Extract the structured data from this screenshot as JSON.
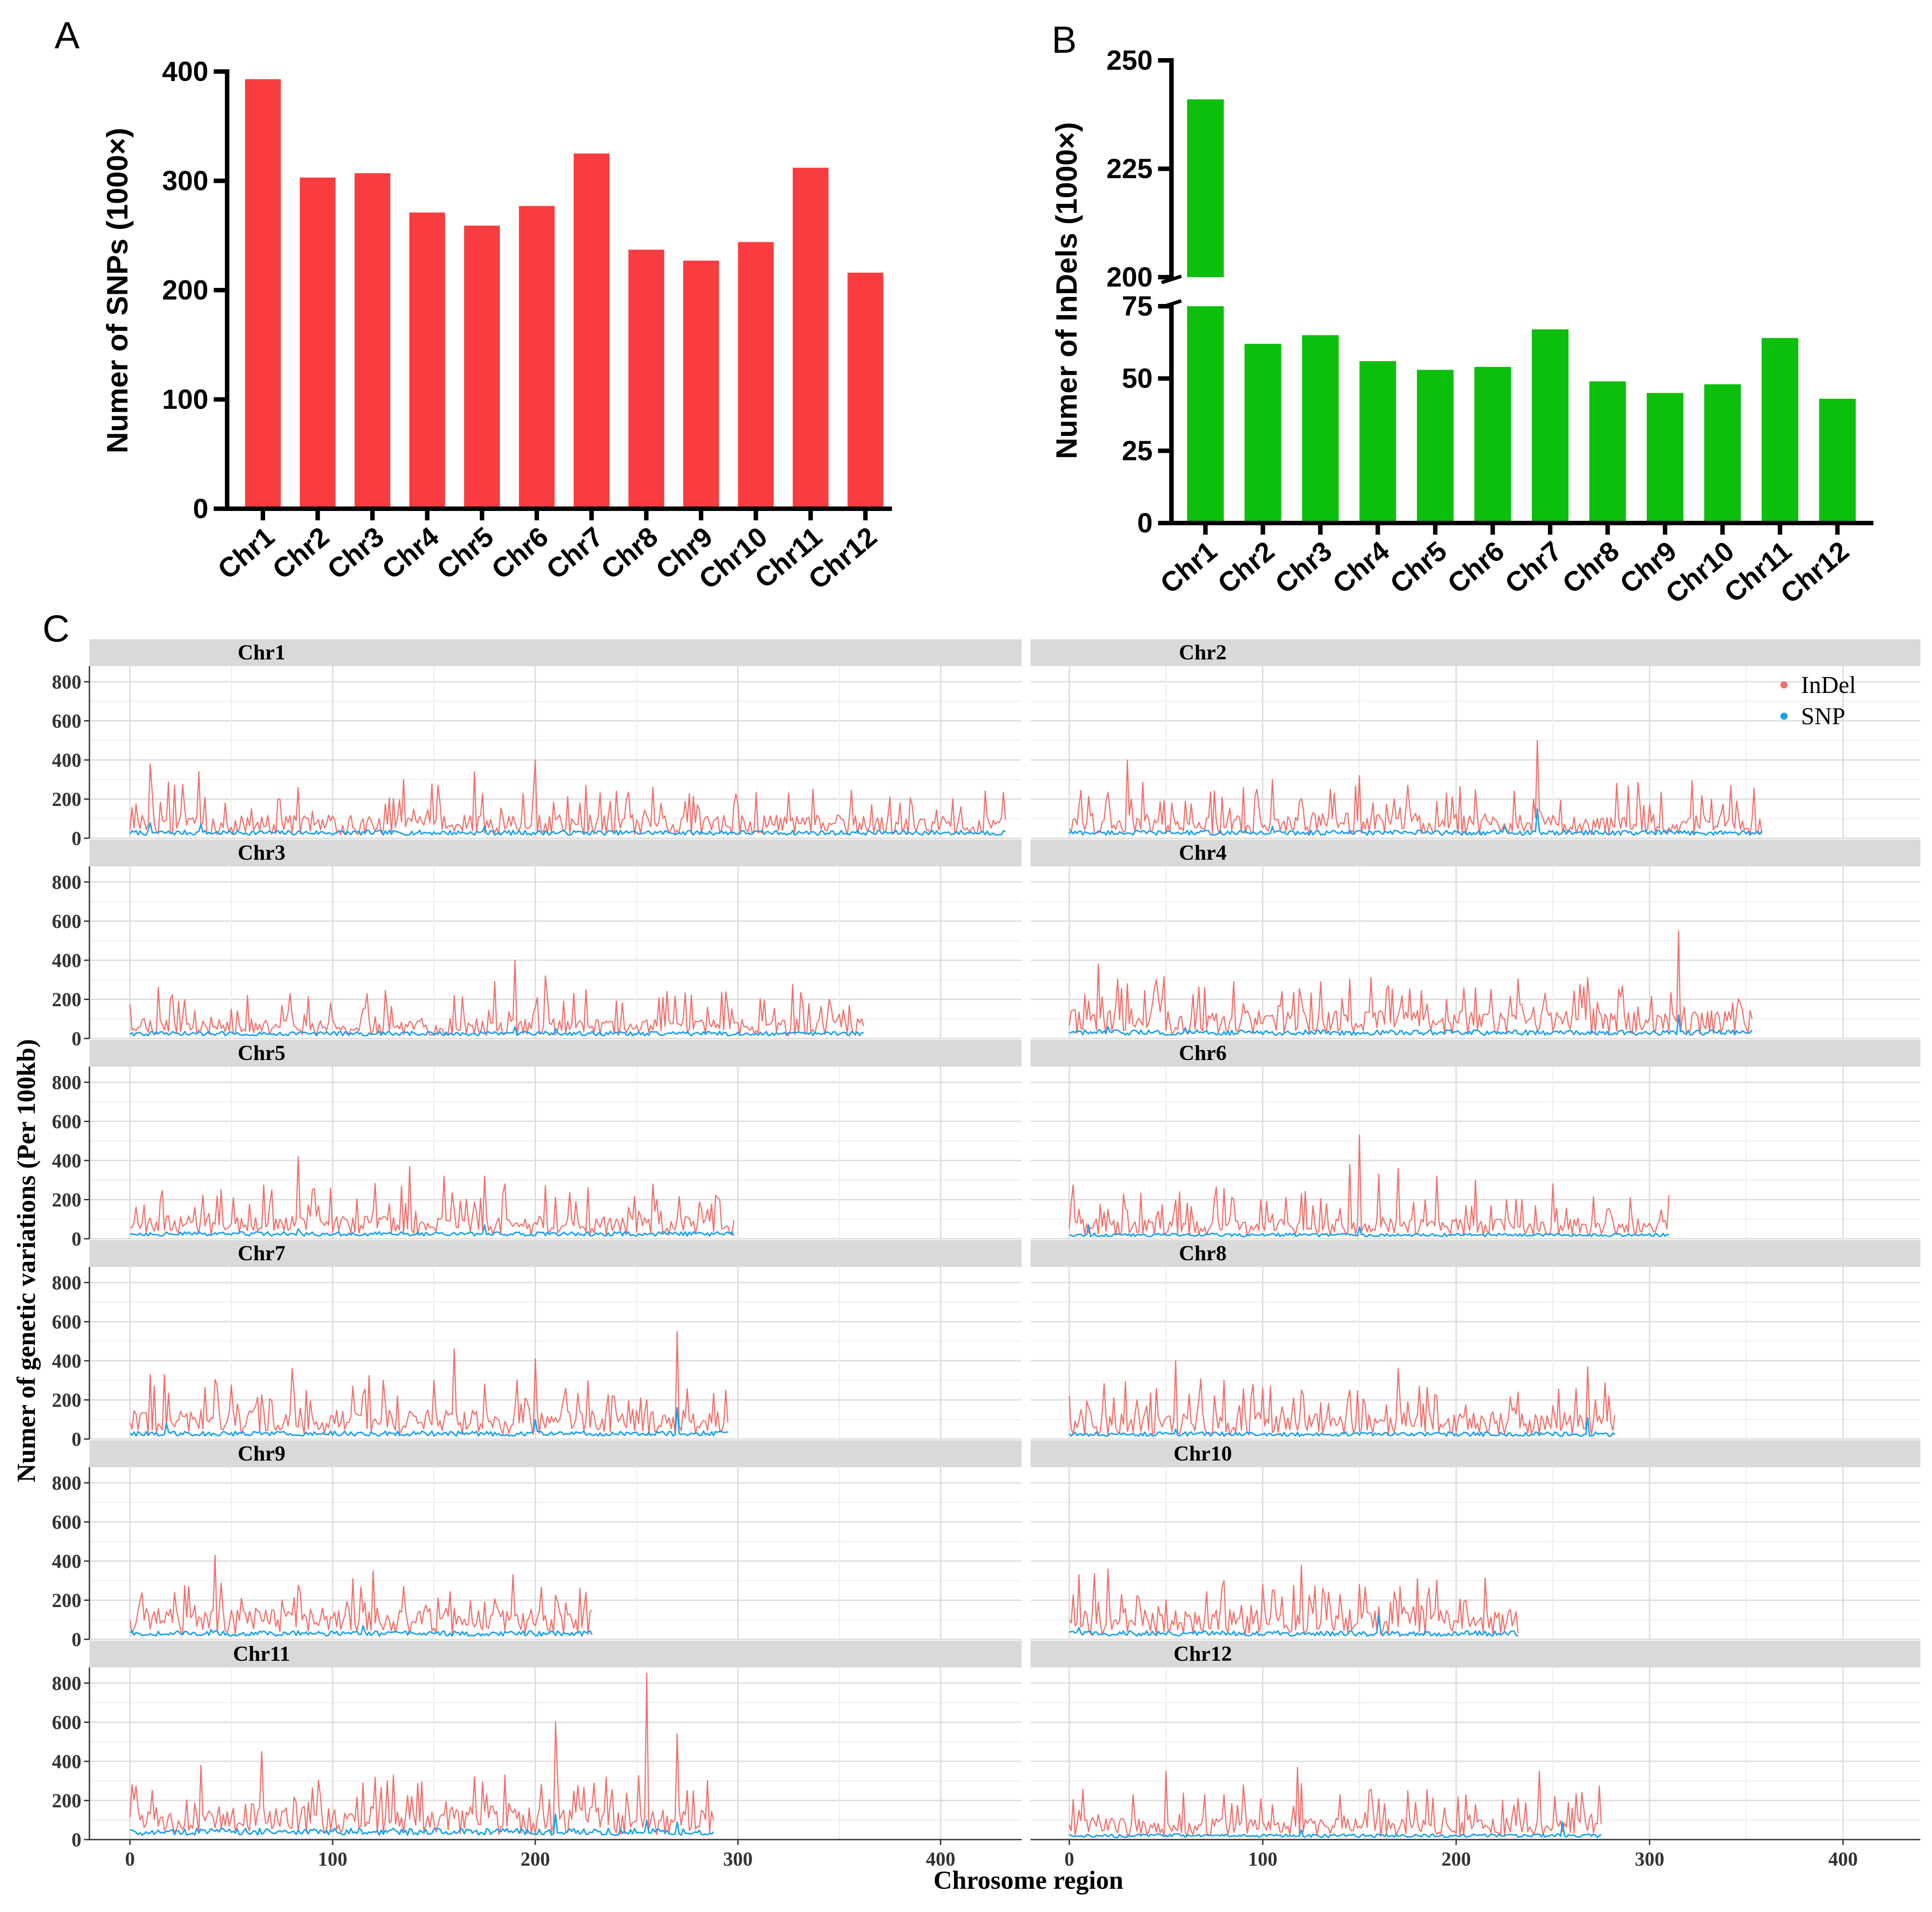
{
  "panel_labels": {
    "a": "A",
    "b": "B",
    "c": "C"
  },
  "colors": {
    "snp_bar": "#f93c3f",
    "indel_bar": "#0cbf0c",
    "indel_line": "#f0706b",
    "snp_line": "#1aa0f0",
    "strip_bg": "#d9d9d9",
    "grid": "#dcdcdc"
  },
  "chart_data": [
    {
      "id": "A",
      "type": "bar",
      "title": "",
      "xlabel": "",
      "ylabel": "Numer of SNPs (1000×)",
      "ylim": [
        0,
        400
      ],
      "yticks": [
        "0",
        "100",
        "200",
        "300",
        "400"
      ],
      "categories": [
        "Chr1",
        "Chr2",
        "Chr3",
        "Chr4",
        "Chr5",
        "Chr6",
        "Chr7",
        "Chr8",
        "Chr9",
        "Chr10",
        "Chr11",
        "Chr12"
      ],
      "values": [
        393,
        303,
        307,
        271,
        259,
        277,
        325,
        237,
        227,
        244,
        312,
        216
      ]
    },
    {
      "id": "B",
      "type": "bar",
      "title": "",
      "xlabel": "",
      "ylabel": "Numer of InDels (1000×)",
      "axis_break": {
        "lower_range": [
          0,
          75
        ],
        "upper_range": [
          200,
          250
        ]
      },
      "yticks_lower": [
        "0",
        "25",
        "50",
        "75"
      ],
      "yticks_upper": [
        "200",
        "225",
        "250"
      ],
      "categories": [
        "Chr1",
        "Chr2",
        "Chr3",
        "Chr4",
        "Chr5",
        "Chr6",
        "Chr7",
        "Chr8",
        "Chr9",
        "Chr10",
        "Chr11",
        "Chr12"
      ],
      "values": [
        241,
        62,
        65,
        56,
        53,
        54,
        67,
        49,
        45,
        48,
        64,
        43
      ]
    },
    {
      "id": "C",
      "type": "line",
      "title": "",
      "xlabel": "Chrosome region",
      "ylabel": "Numer of genetic variations (Per 100kb)",
      "ylim": [
        0,
        880
      ],
      "yticks": [
        "0",
        "200",
        "400",
        "600",
        "800"
      ],
      "xlim": [
        -20,
        440
      ],
      "xticks": [
        "0",
        "100",
        "200",
        "300",
        "400"
      ],
      "legend": {
        "position": "top-right",
        "entries": [
          "InDel",
          "SNP"
        ]
      },
      "series_names": [
        "InDel",
        "SNP"
      ],
      "facets": [
        {
          "name": "Chr1",
          "length": 432,
          "indel_base": 70,
          "snp_base": 28,
          "indel_peaks": [
            [
              10,
              380
            ],
            [
              22,
              270
            ],
            [
              34,
              340
            ],
            [
              60,
              150
            ],
            [
              135,
              300
            ],
            [
              152,
              270
            ],
            [
              170,
              340
            ],
            [
              200,
              400
            ],
            [
              225,
              270
            ],
            [
              240,
              240
            ],
            [
              280,
              170
            ],
            [
              325,
              230
            ],
            [
              380,
              180
            ],
            [
              410,
              160
            ]
          ],
          "snp_peaks": [
            [
              10,
              80
            ],
            [
              35,
              70
            ],
            [
              175,
              60
            ]
          ]
        },
        {
          "name": "Chr2",
          "length": 358,
          "indel_base": 75,
          "snp_base": 28,
          "indel_peaks": [
            [
              30,
              400
            ],
            [
              60,
              190
            ],
            [
              105,
              300
            ],
            [
              135,
              250
            ],
            [
              150,
              320
            ],
            [
              175,
              270
            ],
            [
              195,
              230
            ],
            [
              242,
              500
            ],
            [
              300,
              170
            ],
            [
              345,
              190
            ]
          ],
          "snp_peaks": [
            [
              242,
              150
            ],
            [
              105,
              60
            ],
            [
              225,
              60
            ]
          ]
        },
        {
          "name": "Chr3",
          "length": 362,
          "indel_base": 60,
          "snp_base": 25,
          "indel_peaks": [
            [
              40,
              110
            ],
            [
              80,
              120
            ],
            [
              115,
              150
            ],
            [
              160,
              220
            ],
            [
              180,
              290
            ],
            [
              190,
              400
            ],
            [
              205,
              320
            ],
            [
              225,
              250
            ],
            [
              265,
              240
            ],
            [
              295,
              160
            ],
            [
              345,
              200
            ],
            [
              355,
              170
            ]
          ],
          "snp_peaks": [
            [
              190,
              60
            ],
            [
              210,
              50
            ]
          ]
        },
        {
          "name": "Chr4",
          "length": 353,
          "indel_base": 85,
          "snp_base": 30,
          "indel_peaks": [
            [
              15,
              380
            ],
            [
              30,
              280
            ],
            [
              45,
              300
            ],
            [
              70,
              260
            ],
            [
              85,
              290
            ],
            [
              110,
              240
            ],
            [
              130,
              290
            ],
            [
              165,
              270
            ],
            [
              195,
              200
            ],
            [
              240,
              160
            ],
            [
              268,
              310
            ],
            [
              315,
              550
            ],
            [
              340,
              90
            ]
          ],
          "snp_peaks": [
            [
              20,
              60
            ],
            [
              315,
              120
            ],
            [
              60,
              50
            ]
          ]
        },
        {
          "name": "Chr5",
          "length": 298,
          "indel_base": 70,
          "snp_base": 25,
          "indel_peaks": [
            [
              15,
              200
            ],
            [
              45,
              250
            ],
            [
              70,
              250
            ],
            [
              83,
              420
            ],
            [
              90,
              250
            ],
            [
              138,
              370
            ],
            [
              155,
              320
            ],
            [
              175,
              320
            ],
            [
              185,
              280
            ],
            [
              220,
              190
            ],
            [
              260,
              200
            ],
            [
              285,
              150
            ]
          ],
          "snp_peaks": [
            [
              175,
              70
            ],
            [
              83,
              50
            ]
          ]
        },
        {
          "name": "Chr6",
          "length": 310,
          "indel_base": 60,
          "snp_base": 20,
          "indel_peaks": [
            [
              5,
              150
            ],
            [
              20,
              150
            ],
            [
              75,
              200
            ],
            [
              120,
              230
            ],
            [
              145,
              380
            ],
            [
              150,
              530
            ],
            [
              160,
              330
            ],
            [
              170,
              360
            ],
            [
              190,
              320
            ],
            [
              210,
              300
            ],
            [
              250,
              280
            ],
            [
              280,
              130
            ],
            [
              300,
              80
            ]
          ],
          "snp_peaks": [
            [
              10,
              70
            ],
            [
              150,
              60
            ]
          ]
        },
        {
          "name": "Chr7",
          "length": 295,
          "indel_base": 90,
          "snp_base": 28,
          "indel_peaks": [
            [
              10,
              330
            ],
            [
              17,
              330
            ],
            [
              80,
              360
            ],
            [
              110,
              270
            ],
            [
              125,
              300
            ],
            [
              150,
              300
            ],
            [
              160,
              460
            ],
            [
              175,
              280
            ],
            [
              200,
              410
            ],
            [
              215,
              260
            ],
            [
              255,
              200
            ],
            [
              270,
              550
            ],
            [
              294,
              250
            ]
          ],
          "snp_peaks": [
            [
              18,
              80
            ],
            [
              200,
              100
            ],
            [
              270,
              160
            ]
          ]
        },
        {
          "name": "Chr8",
          "length": 282,
          "indel_base": 80,
          "snp_base": 25,
          "indel_peaks": [
            [
              10,
              160
            ],
            [
              35,
              200
            ],
            [
              55,
              400
            ],
            [
              80,
              300
            ],
            [
              95,
              280
            ],
            [
              120,
              250
            ],
            [
              145,
              250
            ],
            [
              170,
              360
            ],
            [
              190,
              220
            ],
            [
              230,
              160
            ],
            [
              250,
              170
            ],
            [
              268,
              370
            ],
            [
              275,
              80
            ]
          ],
          "snp_peaks": [
            [
              268,
              110
            ],
            [
              55,
              50
            ]
          ]
        },
        {
          "name": "Chr9",
          "length": 228,
          "indel_base": 95,
          "snp_base": 30,
          "indel_peaks": [
            [
              5,
              200
            ],
            [
              22,
              240
            ],
            [
              42,
              430
            ],
            [
              55,
              210
            ],
            [
              75,
              200
            ],
            [
              95,
              160
            ],
            [
              110,
              310
            ],
            [
              120,
              350
            ],
            [
              135,
              270
            ],
            [
              155,
              130
            ],
            [
              175,
              190
            ],
            [
              222,
              260
            ],
            [
              228,
              150
            ]
          ],
          "snp_peaks": [
            [
              115,
              70
            ],
            [
              40,
              50
            ]
          ]
        },
        {
          "name": "Chr10",
          "length": 232,
          "indel_base": 90,
          "snp_base": 30,
          "indel_peaks": [
            [
              5,
              330
            ],
            [
              20,
              360
            ],
            [
              50,
              200
            ],
            [
              80,
              300
            ],
            [
              100,
              280
            ],
            [
              120,
              380
            ],
            [
              140,
              230
            ],
            [
              150,
              280
            ],
            [
              180,
              310
            ],
            [
              205,
              200
            ],
            [
              230,
              100
            ]
          ],
          "snp_peaks": [
            [
              160,
              120
            ],
            [
              5,
              60
            ]
          ]
        },
        {
          "name": "Chr11",
          "length": 288,
          "indel_base": 100,
          "snp_base": 40,
          "indel_peaks": [
            [
              35,
              380
            ],
            [
              65,
              450
            ],
            [
              115,
              290
            ],
            [
              130,
              330
            ],
            [
              170,
              320
            ],
            [
              185,
              330
            ],
            [
              210,
              600
            ],
            [
              235,
              320
            ],
            [
              255,
              850
            ],
            [
              270,
              540
            ],
            [
              285,
              300
            ]
          ],
          "snp_peaks": [
            [
              210,
              130
            ],
            [
              255,
              100
            ],
            [
              270,
              90
            ]
          ]
        },
        {
          "name": "Chr12",
          "length": 275,
          "indel_base": 65,
          "snp_base": 20,
          "indel_peaks": [
            [
              5,
              150
            ],
            [
              50,
              350
            ],
            [
              70,
              230
            ],
            [
              90,
              280
            ],
            [
              118,
              370
            ],
            [
              140,
              230
            ],
            [
              155,
              250
            ],
            [
              175,
              250
            ],
            [
              205,
              230
            ],
            [
              243,
              350
            ],
            [
              260,
              160
            ],
            [
              270,
              130
            ]
          ],
          "snp_peaks": [
            [
              255,
              90
            ],
            [
              120,
              50
            ]
          ]
        }
      ]
    }
  ]
}
